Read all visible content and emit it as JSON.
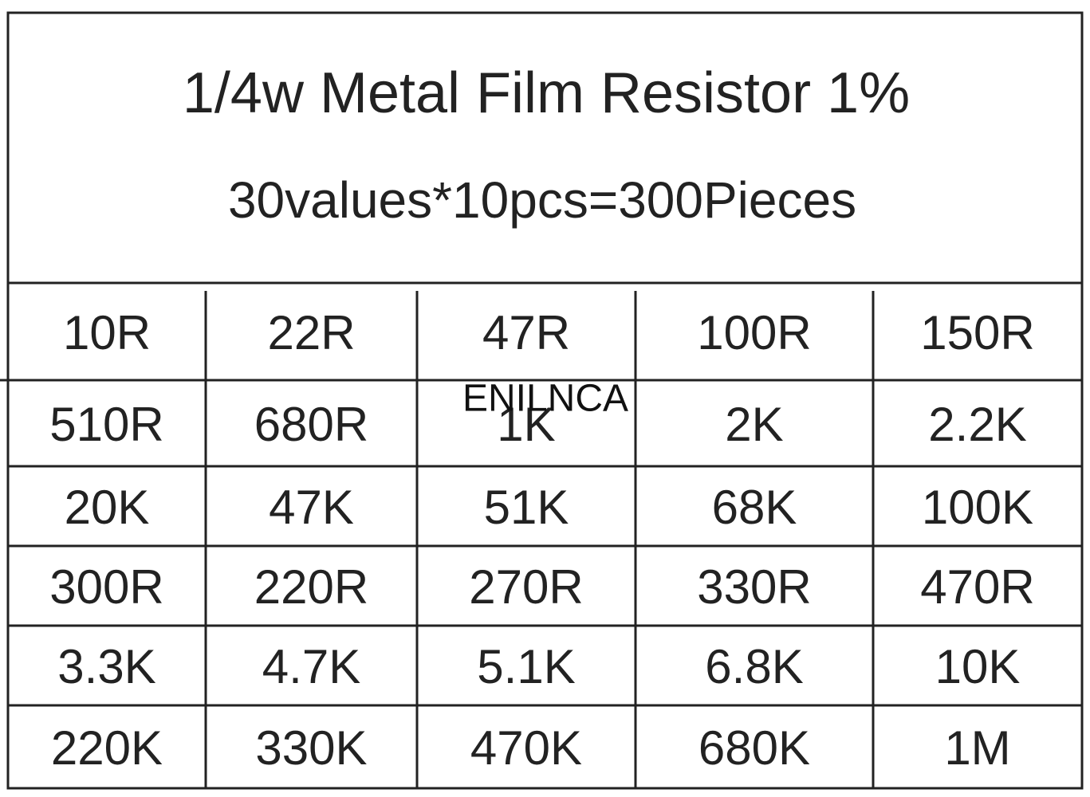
{
  "header": {
    "title": "1/4w Metal Film Resistor 1%",
    "subtitle": "30values*10pcs=300Pieces"
  },
  "table": {
    "rows": [
      [
        "10R",
        "22R",
        "47R",
        "100R",
        "150R"
      ],
      [
        "510R",
        "680R",
        "1K",
        "2K",
        "2.2K"
      ],
      [
        "20K",
        "47K",
        "51K",
        "68K",
        "100K"
      ],
      [
        "300R",
        "220R",
        "270R",
        "330R",
        "470R"
      ],
      [
        "3.3K",
        "4.7K",
        "5.1K",
        "6.8K",
        "10K"
      ],
      [
        "220K",
        "330K",
        "470K",
        "680K",
        "1M"
      ]
    ]
  },
  "watermark": "ENILNCA"
}
